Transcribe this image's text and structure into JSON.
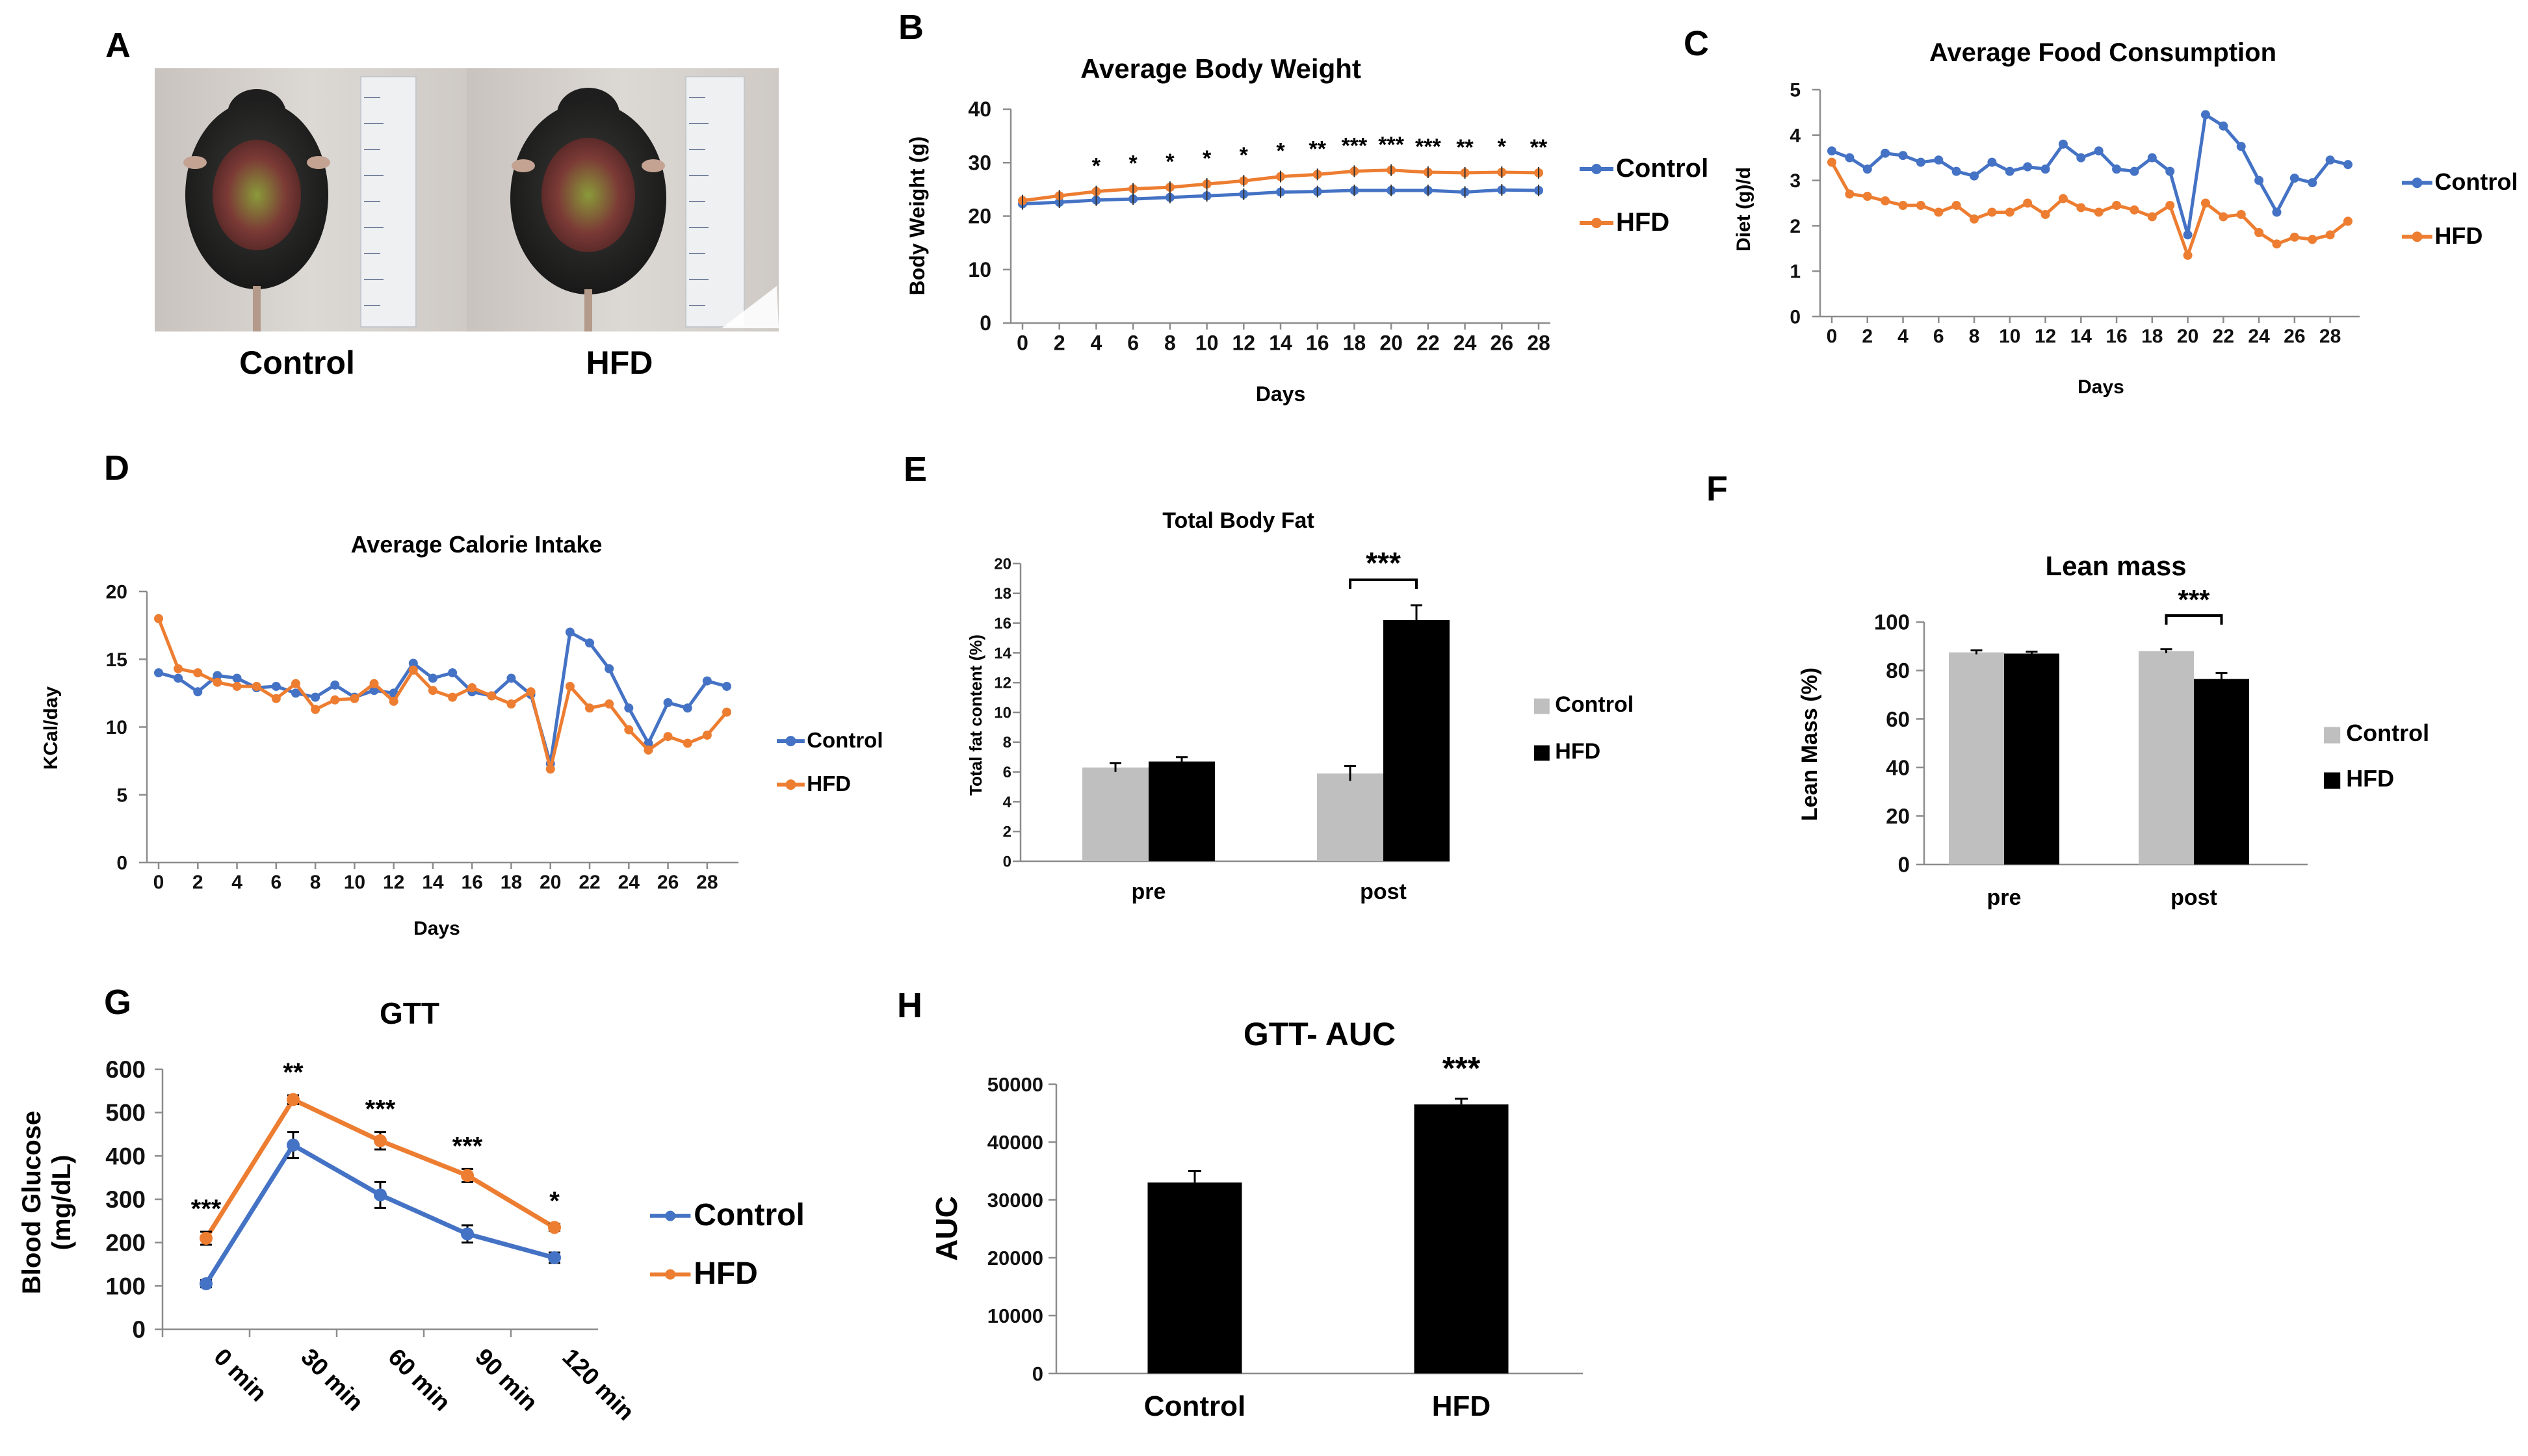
{
  "panelA": {
    "letter": "A",
    "images": [
      {
        "caption": "Control",
        "name": "control-mouse-photo"
      },
      {
        "caption": "HFD",
        "name": "hfd-mouse-photo"
      }
    ]
  },
  "colors": {
    "control": "#4472C4",
    "hfd": "#ED7D31",
    "bar_control": "#BFBFBF",
    "bar_hfd": "#000000"
  },
  "chart_data": [
    {
      "id": "B",
      "letter": "B",
      "type": "line",
      "title": "Average Body Weight",
      "xlabel": "Days",
      "ylabel": "Body  Weight (g)",
      "ylim": [
        0,
        40
      ],
      "yticks": [
        0,
        10,
        20,
        30,
        40
      ],
      "xlim": [
        0,
        28
      ],
      "xticks": [
        0,
        2,
        4,
        6,
        8,
        10,
        12,
        14,
        16,
        18,
        20,
        22,
        24,
        26,
        28
      ],
      "x": [
        0,
        2,
        4,
        6,
        8,
        10,
        12,
        14,
        16,
        18,
        20,
        22,
        24,
        26,
        28
      ],
      "series": [
        {
          "name": "Control",
          "values": [
            22.3,
            22.6,
            23.0,
            23.2,
            23.5,
            23.8,
            24.1,
            24.5,
            24.6,
            24.8,
            24.8,
            24.8,
            24.5,
            24.9,
            24.8
          ]
        },
        {
          "name": "HFD",
          "values": [
            22.9,
            23.8,
            24.6,
            25.1,
            25.4,
            26.0,
            26.6,
            27.4,
            27.8,
            28.4,
            28.6,
            28.2,
            28.1,
            28.2,
            28.1
          ]
        }
      ],
      "annotations": [
        {
          "x": 4,
          "text": "*"
        },
        {
          "x": 6,
          "text": "*"
        },
        {
          "x": 8,
          "text": "*"
        },
        {
          "x": 10,
          "text": "*"
        },
        {
          "x": 12,
          "text": "*"
        },
        {
          "x": 14,
          "text": "*"
        },
        {
          "x": 16,
          "text": "**"
        },
        {
          "x": 18,
          "text": "***"
        },
        {
          "x": 20,
          "text": "***"
        },
        {
          "x": 22,
          "text": "***"
        },
        {
          "x": 24,
          "text": "**"
        },
        {
          "x": 26,
          "text": "*"
        },
        {
          "x": 28,
          "text": "**"
        }
      ],
      "legend": [
        "Control",
        "HFD"
      ]
    },
    {
      "id": "C",
      "letter": "C",
      "type": "line",
      "title": "Average Food Consumption",
      "xlabel": "Days",
      "ylabel": "Diet (g)/d",
      "ylim": [
        0,
        5
      ],
      "yticks": [
        0,
        1,
        2,
        3,
        4,
        5
      ],
      "xlim": [
        0,
        29
      ],
      "xticks": [
        0,
        2,
        4,
        6,
        8,
        10,
        12,
        14,
        16,
        18,
        20,
        22,
        24,
        26,
        28
      ],
      "x": [
        0,
        1,
        2,
        3,
        4,
        5,
        6,
        7,
        8,
        9,
        10,
        11,
        12,
        13,
        14,
        15,
        16,
        17,
        18,
        19,
        20,
        21,
        22,
        23,
        24,
        25,
        26,
        27,
        28,
        29
      ],
      "series": [
        {
          "name": "Control",
          "values": [
            3.65,
            3.5,
            3.25,
            3.6,
            3.55,
            3.4,
            3.45,
            3.2,
            3.1,
            3.4,
            3.2,
            3.3,
            3.25,
            3.8,
            3.5,
            3.65,
            3.25,
            3.2,
            3.5,
            3.2,
            1.8,
            4.45,
            4.2,
            3.75,
            3.0,
            2.3,
            3.05,
            2.95,
            3.45,
            3.35
          ]
        },
        {
          "name": "HFD",
          "values": [
            3.4,
            2.7,
            2.65,
            2.55,
            2.45,
            2.45,
            2.3,
            2.45,
            2.15,
            2.3,
            2.3,
            2.5,
            2.25,
            2.6,
            2.4,
            2.3,
            2.45,
            2.35,
            2.2,
            2.45,
            1.35,
            2.5,
            2.2,
            2.25,
            1.85,
            1.6,
            1.75,
            1.7,
            1.8,
            2.1
          ]
        }
      ],
      "legend": [
        "Control",
        "HFD"
      ]
    },
    {
      "id": "D",
      "letter": "D",
      "type": "line",
      "title": "Average Calorie Intake",
      "xlabel": "Days",
      "ylabel": "KCal/day",
      "ylim": [
        0,
        20
      ],
      "yticks": [
        0,
        5,
        10,
        15,
        20
      ],
      "xlim": [
        0,
        29
      ],
      "xticks": [
        0,
        2,
        4,
        6,
        8,
        10,
        12,
        14,
        16,
        18,
        20,
        22,
        24,
        26,
        28
      ],
      "x": [
        0,
        1,
        2,
        3,
        4,
        5,
        6,
        7,
        8,
        9,
        10,
        11,
        12,
        13,
        14,
        15,
        16,
        17,
        18,
        19,
        20,
        21,
        22,
        23,
        24,
        25,
        26,
        27,
        28,
        29
      ],
      "series": [
        {
          "name": "Control",
          "values": [
            14.0,
            13.6,
            12.6,
            13.8,
            13.6,
            12.9,
            13.0,
            12.5,
            12.2,
            13.1,
            12.2,
            12.7,
            12.5,
            14.7,
            13.6,
            14.0,
            12.6,
            12.3,
            13.6,
            12.4,
            7.3,
            17.0,
            16.2,
            14.3,
            11.4,
            8.8,
            11.8,
            11.4,
            13.4,
            13.0
          ]
        },
        {
          "name": "HFD",
          "values": [
            18.0,
            14.3,
            14.0,
            13.3,
            13.0,
            13.0,
            12.1,
            13.2,
            11.3,
            12.0,
            12.1,
            13.2,
            11.9,
            14.2,
            12.7,
            12.2,
            12.9,
            12.3,
            11.7,
            12.6,
            6.9,
            13.0,
            11.4,
            11.7,
            9.8,
            8.3,
            9.3,
            8.8,
            9.4,
            11.1
          ]
        }
      ],
      "legend": [
        "Control",
        "HFD"
      ]
    },
    {
      "id": "E",
      "letter": "E",
      "type": "bar",
      "title": "Total Body Fat",
      "xlabel": "",
      "ylabel": "Total fat content (%)",
      "ylim": [
        0,
        20
      ],
      "yticks": [
        0,
        2,
        4,
        6,
        8,
        10,
        12,
        14,
        16,
        18,
        20
      ],
      "categories": [
        "pre",
        "post"
      ],
      "series": [
        {
          "name": "Control",
          "values": [
            6.3,
            5.9
          ],
          "errors": [
            0.3,
            0.5
          ]
        },
        {
          "name": "HFD",
          "values": [
            6.7,
            16.2
          ],
          "errors": [
            0.3,
            1.0
          ]
        }
      ],
      "annotations": [
        {
          "category": "post",
          "text": "***"
        }
      ],
      "legend": [
        "Control",
        "HFD"
      ]
    },
    {
      "id": "F",
      "letter": "F",
      "type": "bar",
      "title": "Lean mass",
      "xlabel": "",
      "ylabel": "Lean Mass (%)",
      "ylim": [
        0,
        100
      ],
      "yticks": [
        0,
        20,
        40,
        60,
        80,
        100
      ],
      "categories": [
        "pre",
        "post"
      ],
      "series": [
        {
          "name": "Control",
          "values": [
            87.5,
            88.0
          ],
          "errors": [
            0.8,
            0.8
          ]
        },
        {
          "name": "HFD",
          "values": [
            87.0,
            76.5
          ],
          "errors": [
            0.8,
            2.5
          ]
        }
      ],
      "annotations": [
        {
          "category": "post",
          "text": "***"
        }
      ],
      "legend": [
        "Control",
        "HFD"
      ]
    },
    {
      "id": "G",
      "letter": "G",
      "type": "line",
      "title": "GTT",
      "xlabel": "",
      "ylabel": "Blood Glucose (mg/dL)",
      "ylabel_lines": [
        "Blood Glucose",
        "(mg/dL)"
      ],
      "ylim": [
        0,
        600
      ],
      "yticks": [
        0,
        100,
        200,
        300,
        400,
        500,
        600
      ],
      "categories": [
        "0 min",
        "30 min",
        "60 min",
        "90 min",
        "120 min"
      ],
      "series": [
        {
          "name": "Control",
          "values": [
            105,
            425,
            310,
            220,
            165
          ],
          "errors": [
            8,
            30,
            30,
            20,
            12
          ]
        },
        {
          "name": "HFD",
          "values": [
            210,
            530,
            435,
            355,
            235
          ],
          "errors": [
            15,
            10,
            20,
            15,
            8
          ]
        }
      ],
      "annotations": [
        {
          "category": "0 min",
          "text": "***"
        },
        {
          "category": "30 min",
          "text": "**"
        },
        {
          "category": "60 min",
          "text": "***"
        },
        {
          "category": "90 min",
          "text": "***"
        },
        {
          "category": "120 min",
          "text": "*"
        }
      ],
      "legend": [
        "Control",
        "HFD"
      ]
    },
    {
      "id": "H",
      "letter": "H",
      "type": "bar",
      "title": "GTT- AUC",
      "xlabel": "",
      "ylabel": "AUC",
      "ylim": [
        0,
        50000
      ],
      "yticks": [
        0,
        10000,
        20000,
        30000,
        40000,
        50000
      ],
      "categories": [
        "Control",
        "HFD"
      ],
      "values": [
        33000,
        46500
      ],
      "errors": [
        2000,
        1000
      ],
      "annotations": [
        {
          "category": "HFD",
          "text": "***"
        }
      ]
    }
  ]
}
